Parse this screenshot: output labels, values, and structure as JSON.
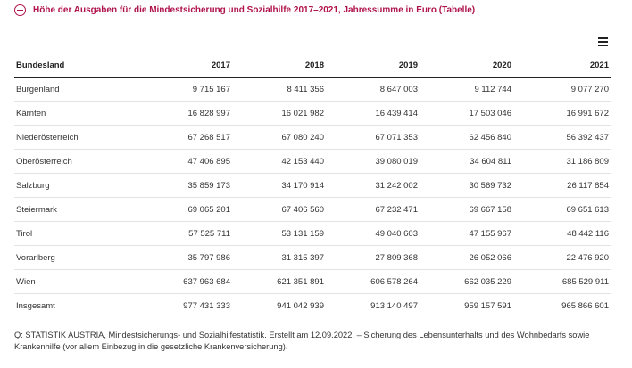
{
  "header": {
    "title": "Höhe der Ausgaben für die Mindestsicherung und Sozialhilfe 2017–2021, Jahressumme in Euro (Tabelle)"
  },
  "table": {
    "columns": [
      "Bundesland",
      "2017",
      "2018",
      "2019",
      "2020",
      "2021"
    ],
    "rows": [
      [
        "Burgenland",
        "9 715 167",
        "8 411 356",
        "8 647 003",
        "9 112 744",
        "9 077 270"
      ],
      [
        "Kärnten",
        "16 828 997",
        "16 021 982",
        "16 439 414",
        "17 503 046",
        "16 991 672"
      ],
      [
        "Niederösterreich",
        "67 268 517",
        "67 080 240",
        "67 071 353",
        "62 456 840",
        "56 392 437"
      ],
      [
        "Oberösterreich",
        "47 406 895",
        "42 153 440",
        "39 080 019",
        "34 604 811",
        "31 186 809"
      ],
      [
        "Salzburg",
        "35 859 173",
        "34 170 914",
        "31 242 002",
        "30 569 732",
        "26 117 854"
      ],
      [
        "Steiermark",
        "69 065 201",
        "67 406 560",
        "67 232 471",
        "69 667 158",
        "69 651 613"
      ],
      [
        "Tirol",
        "57 525 711",
        "53 131 159",
        "49 040 603",
        "47 155 967",
        "48 442 116"
      ],
      [
        "Vorarlberg",
        "35 797 986",
        "31 315 397",
        "27 809 368",
        "26 052 066",
        "22 476 920"
      ],
      [
        "Wien",
        "637 963 684",
        "621 351 891",
        "606 578 264",
        "662 035 229",
        "685 529 911"
      ],
      [
        "Insgesamt",
        "977 431 333",
        "941 042 939",
        "913 140 497",
        "959 157 591",
        "965 866 601"
      ]
    ]
  },
  "source": "Q: STATISTIK AUSTRIA, Mindestsicherungs- und Sozialhilfestatistik. Erstellt am 12.09.2022. – Sicherung des Lebensunterhalts und des Wohnbedarfs sowie Krankenhilfe (vor allem Einbezug in die gesetzliche Krankenversicherung).",
  "colors": {
    "accent": "#b0134b",
    "text": "#222222",
    "rule": "#e3e3e3"
  },
  "icons": {
    "collapse": "minus-circle-icon",
    "menu": "hamburger-menu-icon"
  }
}
